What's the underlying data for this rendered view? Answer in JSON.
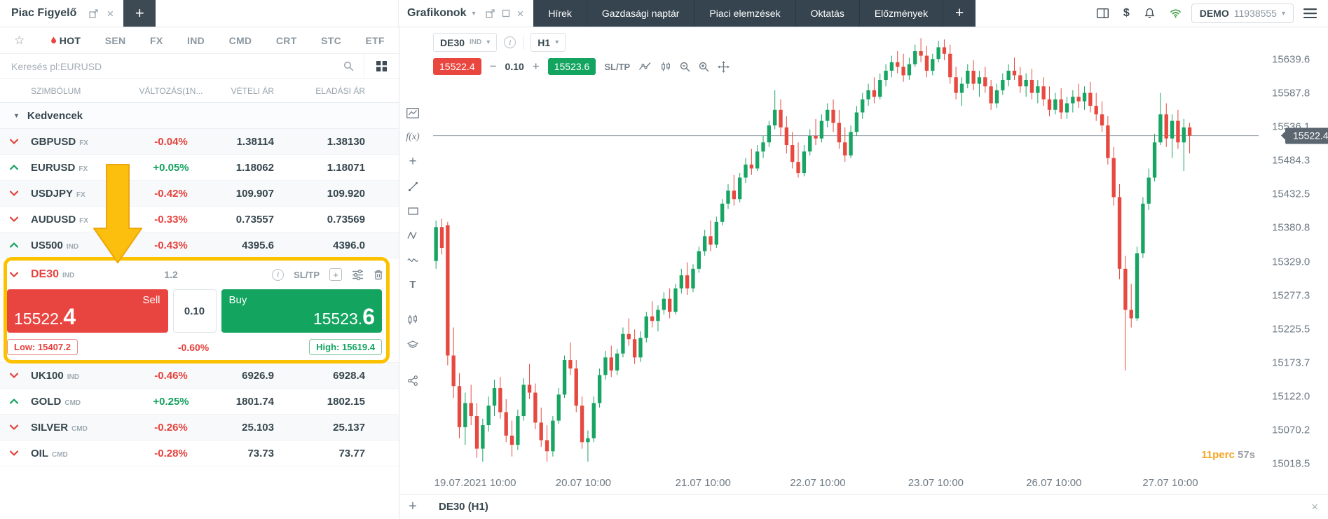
{
  "colors": {
    "accent_red": "#e5423d",
    "accent_green": "#13a45f",
    "nav_dark": "#35444e",
    "annotation_yellow": "#fcc200",
    "candle_up": "#18a463",
    "candle_down": "#e6493f"
  },
  "topbar": {
    "left_title": "Piac Figyelő",
    "plus_tab": "+",
    "chart_title": "Grafikonok",
    "nav": [
      "Hírek",
      "Gazdasági naptár",
      "Piaci elemzések",
      "Oktatás",
      "Előzmények"
    ],
    "nav_plus": "+",
    "account_type": "DEMO",
    "account_id": "11938555"
  },
  "watchlist": {
    "tabs": [
      "HOT",
      "SEN",
      "FX",
      "IND",
      "CMD",
      "CRT",
      "STC",
      "ETF"
    ],
    "search_placeholder": "Keresés pl:EURUSD",
    "columns": [
      "SZIMBÓLUM",
      "VÁLTOZÁS(1N...",
      "VÉTELI ÁR",
      "ELADÁSI ÁR"
    ],
    "group_label": "Kedvencek",
    "rows_above": [
      {
        "symbol": "GBPUSD",
        "market": "FX",
        "dir": "down",
        "change": "-0.04%",
        "bid": "1.38114",
        "ask": "1.38130"
      },
      {
        "symbol": "EURUSD",
        "market": "FX",
        "dir": "up",
        "change": "+0.05%",
        "bid": "1.18062",
        "ask": "1.18071"
      },
      {
        "symbol": "USDJPY",
        "market": "FX",
        "dir": "down",
        "change": "-0.42%",
        "bid": "109.907",
        "ask": "109.920"
      },
      {
        "symbol": "AUDUSD",
        "market": "FX",
        "dir": "down",
        "change": "-0.33%",
        "bid": "0.73557",
        "ask": "0.73569"
      },
      {
        "symbol": "US500",
        "market": "IND",
        "dir": "up",
        "change": "-0.43%",
        "bid": "4395.6",
        "ask": "4396.0"
      }
    ],
    "rows_below": [
      {
        "symbol": "UK100",
        "market": "IND",
        "dir": "down",
        "change": "-0.46%",
        "bid": "6926.9",
        "ask": "6928.4"
      },
      {
        "symbol": "GOLD",
        "market": "CMD",
        "dir": "up",
        "change": "+0.25%",
        "bid": "1801.74",
        "ask": "1802.15"
      },
      {
        "symbol": "SILVER",
        "market": "CMD",
        "dir": "down",
        "change": "-0.26%",
        "bid": "25.103",
        "ask": "25.137"
      },
      {
        "symbol": "OIL",
        "market": "CMD",
        "dir": "down",
        "change": "-0.28%",
        "bid": "73.73",
        "ask": "73.77"
      }
    ],
    "de30": {
      "symbol": "DE30",
      "market": "IND",
      "spread": "1.2",
      "sltp_label": "SL/TP",
      "sell_label": "Sell",
      "sell_price_main": "15522.",
      "sell_price_big": "4",
      "volume": "0.10",
      "buy_label": "Buy",
      "buy_price_main": "15523.",
      "buy_price_big": "6",
      "low_label": "Low: 15407.2",
      "day_change": "-0.60%",
      "high_label": "High: 15619.4"
    }
  },
  "chart": {
    "symbol": "DE30",
    "market": "IND",
    "timeframe": "H1",
    "sell_badge": "15522.4",
    "buy_badge": "15523.6",
    "volume": "0.10",
    "sltp_label": "SL/TP",
    "minus": "−",
    "plus": "+",
    "countdown_min": "11perc",
    "countdown_sec": "57s",
    "bottom_tab": "DE30 (H1)",
    "bottom_plus": "+",
    "close_glyph": "×"
  },
  "chart_data": {
    "type": "candlestick",
    "title": "DE30 (H1)",
    "symbol": "DE30",
    "timeframe": "H1",
    "up_color": "#18a463",
    "down_color": "#e6493f",
    "ylim": [
      15005,
      15680
    ],
    "plot_fill": 0.92,
    "grid": false,
    "price_line": 15522.4,
    "price_label": "15522.4",
    "y_ticks": [
      {
        "label": "15639.6",
        "value": 15639.6
      },
      {
        "label": "15587.8",
        "value": 15587.8
      },
      {
        "label": "15536.1",
        "value": 15536.1
      },
      {
        "label": "15484.3",
        "value": 15484.3
      },
      {
        "label": "15432.5",
        "value": 15432.5
      },
      {
        "label": "15380.8",
        "value": 15380.8
      },
      {
        "label": "15329.0",
        "value": 15329.0
      },
      {
        "label": "15277.3",
        "value": 15277.3
      },
      {
        "label": "15225.5",
        "value": 15225.5
      },
      {
        "label": "15173.7",
        "value": 15173.7
      },
      {
        "label": "15122.0",
        "value": 15122.0
      },
      {
        "label": "15070.2",
        "value": 15070.2
      },
      {
        "label": "15018.5",
        "value": 15018.5
      }
    ],
    "x_labels": [
      {
        "label": "19.07.2021 10:00",
        "f": 0.051
      },
      {
        "label": "20.07 10:00",
        "f": 0.182
      },
      {
        "label": "21.07 10:00",
        "f": 0.327
      },
      {
        "label": "22.07 10:00",
        "f": 0.466
      },
      {
        "label": "23.07 10:00",
        "f": 0.609
      },
      {
        "label": "26.07 10:00",
        "f": 0.752
      },
      {
        "label": "27.07 10:00",
        "f": 0.893
      }
    ],
    "candles": [
      [
        15330,
        15392,
        15318,
        15382
      ],
      [
        15382,
        15395,
        15340,
        15350
      ],
      [
        15385,
        15390,
        15170,
        15185
      ],
      [
        15185,
        15228,
        15120,
        15138
      ],
      [
        15138,
        15158,
        15058,
        15075
      ],
      [
        15075,
        15128,
        15048,
        15112
      ],
      [
        15112,
        15140,
        15078,
        15092
      ],
      [
        15092,
        15112,
        15028,
        15042
      ],
      [
        15042,
        15088,
        15022,
        15078
      ],
      [
        15078,
        15122,
        15068,
        15108
      ],
      [
        15108,
        15148,
        15092,
        15135
      ],
      [
        15135,
        15152,
        15088,
        15098
      ],
      [
        15098,
        15118,
        15052,
        15062
      ],
      [
        15062,
        15085,
        15030,
        15048
      ],
      [
        15048,
        15102,
        15040,
        15092
      ],
      [
        15092,
        15150,
        15085,
        15140
      ],
      [
        15140,
        15172,
        15118,
        15128
      ],
      [
        15128,
        15142,
        15072,
        15082
      ],
      [
        15082,
        15105,
        15045,
        15055
      ],
      [
        15055,
        15078,
        15022,
        15038
      ],
      [
        15038,
        15092,
        15030,
        15085
      ],
      [
        15085,
        15135,
        15080,
        15125
      ],
      [
        15125,
        15185,
        15120,
        15178
      ],
      [
        15178,
        15205,
        15155,
        15165
      ],
      [
        15165,
        15178,
        15098,
        15108
      ],
      [
        15108,
        15122,
        15042,
        15052
      ],
      [
        15052,
        15070,
        15022,
        15058
      ],
      [
        15058,
        15122,
        15052,
        15112
      ],
      [
        15112,
        15165,
        15105,
        15155
      ],
      [
        15155,
        15192,
        15148,
        15182
      ],
      [
        15182,
        15200,
        15152,
        15162
      ],
      [
        15162,
        15195,
        15155,
        15188
      ],
      [
        15188,
        15228,
        15182,
        15218
      ],
      [
        15218,
        15242,
        15200,
        15210
      ],
      [
        15210,
        15225,
        15172,
        15182
      ],
      [
        15182,
        15222,
        15175,
        15212
      ],
      [
        15212,
        15252,
        15205,
        15245
      ],
      [
        15245,
        15268,
        15228,
        15238
      ],
      [
        15238,
        15262,
        15222,
        15255
      ],
      [
        15255,
        15282,
        15248,
        15272
      ],
      [
        15272,
        15288,
        15242,
        15252
      ],
      [
        15252,
        15295,
        15248,
        15288
      ],
      [
        15288,
        15318,
        15280,
        15308
      ],
      [
        15308,
        15328,
        15278,
        15288
      ],
      [
        15288,
        15325,
        15282,
        15318
      ],
      [
        15318,
        15352,
        15312,
        15345
      ],
      [
        15345,
        15378,
        15338,
        15368
      ],
      [
        15368,
        15392,
        15345,
        15355
      ],
      [
        15355,
        15398,
        15350,
        15390
      ],
      [
        15390,
        15425,
        15385,
        15418
      ],
      [
        15418,
        15448,
        15410,
        15438
      ],
      [
        15438,
        15462,
        15415,
        15425
      ],
      [
        15425,
        15465,
        15420,
        15458
      ],
      [
        15458,
        15488,
        15450,
        15478
      ],
      [
        15478,
        15502,
        15462,
        15472
      ],
      [
        15472,
        15508,
        15468,
        15498
      ],
      [
        15498,
        15522,
        15488,
        15512
      ],
      [
        15512,
        15545,
        15505,
        15538
      ],
      [
        15538,
        15592,
        15532,
        15562
      ],
      [
        15562,
        15578,
        15522,
        15535
      ],
      [
        15535,
        15552,
        15495,
        15508
      ],
      [
        15508,
        15528,
        15472,
        15482
      ],
      [
        15482,
        15512,
        15458,
        15465
      ],
      [
        15465,
        15508,
        15460,
        15498
      ],
      [
        15498,
        15532,
        15492,
        15522
      ],
      [
        15522,
        15548,
        15508,
        15518
      ],
      [
        15518,
        15555,
        15512,
        15545
      ],
      [
        15545,
        15572,
        15535,
        15562
      ],
      [
        15562,
        15578,
        15528,
        15542
      ],
      [
        15542,
        15562,
        15502,
        15512
      ],
      [
        15512,
        15535,
        15482,
        15492
      ],
      [
        15492,
        15538,
        15488,
        15528
      ],
      [
        15528,
        15568,
        15522,
        15558
      ],
      [
        15558,
        15588,
        15548,
        15578
      ],
      [
        15578,
        15602,
        15568,
        15592
      ],
      [
        15592,
        15612,
        15572,
        15582
      ],
      [
        15582,
        15618,
        15578,
        15608
      ],
      [
        15608,
        15632,
        15598,
        15622
      ],
      [
        15622,
        15645,
        15612,
        15635
      ],
      [
        15635,
        15652,
        15618,
        15628
      ],
      [
        15628,
        15648,
        15605,
        15615
      ],
      [
        15615,
        15642,
        15608,
        15632
      ],
      [
        15632,
        15662,
        15628,
        15652
      ],
      [
        15652,
        15672,
        15635,
        15645
      ],
      [
        15645,
        15660,
        15612,
        15622
      ],
      [
        15622,
        15648,
        15615,
        15640
      ],
      [
        15640,
        15668,
        15635,
        15658
      ],
      [
        15658,
        15670,
        15638,
        15648
      ],
      [
        15648,
        15662,
        15602,
        15612
      ],
      [
        15612,
        15628,
        15578,
        15588
      ],
      [
        15588,
        15612,
        15568,
        15602
      ],
      [
        15602,
        15632,
        15595,
        15622
      ],
      [
        15622,
        15638,
        15592,
        15602
      ],
      [
        15602,
        15622,
        15582,
        15612
      ],
      [
        15612,
        15628,
        15588,
        15598
      ],
      [
        15598,
        15608,
        15562,
        15572
      ],
      [
        15572,
        15602,
        15565,
        15592
      ],
      [
        15592,
        15618,
        15585,
        15608
      ],
      [
        15608,
        15632,
        15598,
        15622
      ],
      [
        15622,
        15642,
        15608,
        15615
      ],
      [
        15615,
        15628,
        15588,
        15598
      ],
      [
        15598,
        15618,
        15582,
        15608
      ],
      [
        15608,
        15625,
        15578,
        15588
      ],
      [
        15588,
        15608,
        15572,
        15598
      ],
      [
        15598,
        15612,
        15568,
        15578
      ],
      [
        15578,
        15598,
        15552,
        15562
      ],
      [
        15562,
        15588,
        15555,
        15578
      ],
      [
        15578,
        15595,
        15548,
        15558
      ],
      [
        15558,
        15582,
        15548,
        15572
      ],
      [
        15572,
        15592,
        15558,
        15582
      ],
      [
        15582,
        15602,
        15565,
        15575
      ],
      [
        15575,
        15598,
        15562,
        15588
      ],
      [
        15588,
        15605,
        15558,
        15568
      ],
      [
        15568,
        15588,
        15545,
        15555
      ],
      [
        15555,
        15575,
        15528,
        15538
      ],
      [
        15538,
        15552,
        15478,
        15488
      ],
      [
        15488,
        15505,
        15415,
        15428
      ],
      [
        15428,
        15448,
        15302,
        15318
      ],
      [
        15318,
        15338,
        15162,
        15255
      ],
      [
        15255,
        15295,
        15228,
        15242
      ],
      [
        15242,
        15352,
        15238,
        15342
      ],
      [
        15342,
        15428,
        15335,
        15418
      ],
      [
        15418,
        15472,
        15408,
        15458
      ],
      [
        15458,
        15525,
        15452,
        15512
      ],
      [
        15512,
        15588,
        15508,
        15555
      ],
      [
        15555,
        15572,
        15505,
        15518
      ],
      [
        15518,
        15555,
        15488,
        15545
      ],
      [
        15545,
        15562,
        15502,
        15512
      ],
      [
        15512,
        15548,
        15468,
        15535
      ],
      [
        15535,
        15542,
        15495,
        15522.4
      ]
    ]
  }
}
